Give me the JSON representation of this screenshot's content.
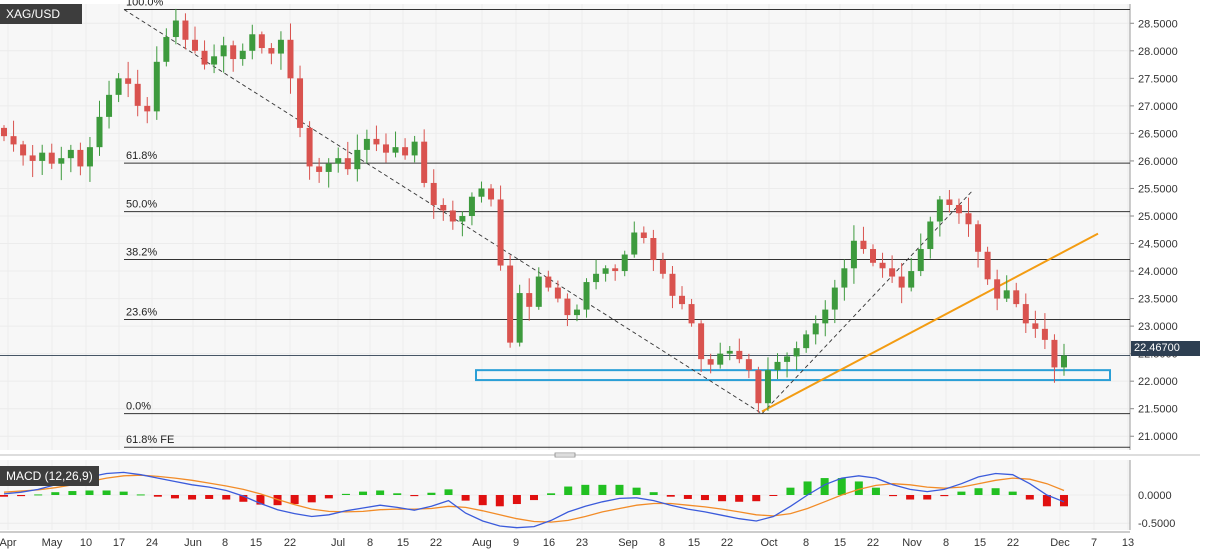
{
  "symbol": "XAG/USD",
  "last_price_label": "22.46700",
  "macd_label": "MACD (12,26,9)",
  "colors": {
    "bull": "#3d9a3d",
    "bear": "#d9534f",
    "trendline": "#f39c12",
    "support_box": "#2a9fd6",
    "macd_line": "#3b5bdb",
    "signal_line": "#f28c28",
    "hist_pos": "#22c022",
    "hist_neg": "#e01010"
  },
  "chart_data": [
    {
      "type": "candlestick",
      "title": "XAG/USD",
      "x_tick_labels": [
        "Apr",
        "May",
        "10",
        "17",
        "24",
        "Jun",
        "8",
        "15",
        "22",
        "Jul",
        "8",
        "15",
        "22",
        "Aug",
        "9",
        "16",
        "23",
        "Sep",
        "8",
        "15",
        "22",
        "Oct",
        "8",
        "15",
        "22",
        "Nov",
        "8",
        "15",
        "22",
        "Dec",
        "7",
        "13"
      ],
      "y_tick_labels": [
        "21.0000",
        "21.5000",
        "22.0000",
        "22.5000",
        "23.0000",
        "23.5000",
        "24.0000",
        "24.5000",
        "25.0000",
        "25.5000",
        "26.0000",
        "26.5000",
        "27.0000",
        "27.5000",
        "28.0000",
        "28.5000"
      ],
      "ylim": [
        20.75,
        28.85
      ],
      "last_price": 22.467,
      "fibonacci_levels": [
        {
          "label": "100.0%",
          "price": 28.75
        },
        {
          "label": "61.8%",
          "price": 25.96
        },
        {
          "label": "50.0%",
          "price": 25.08
        },
        {
          "label": "38.2%",
          "price": 24.21
        },
        {
          "label": "23.6%",
          "price": 23.12
        },
        {
          "label": "0.0%",
          "price": 21.41
        },
        {
          "label": "61.8% FE",
          "price": 20.8
        }
      ],
      "support_zone": [
        22.02,
        22.2
      ],
      "candles_close": [
        26.45,
        26.3,
        26.1,
        26.0,
        26.15,
        25.95,
        26.05,
        26.2,
        25.9,
        26.25,
        26.8,
        27.2,
        27.5,
        27.4,
        27.0,
        26.9,
        27.8,
        28.25,
        28.55,
        28.2,
        28.0,
        27.75,
        27.9,
        28.1,
        27.85,
        28.0,
        28.3,
        28.05,
        27.95,
        28.2,
        27.5,
        26.6,
        25.9,
        25.8,
        25.95,
        26.05,
        25.85,
        26.2,
        26.4,
        26.3,
        26.15,
        26.25,
        26.1,
        26.35,
        25.6,
        25.2,
        25.1,
        24.9,
        25.0,
        25.35,
        25.5,
        25.3,
        24.1,
        22.7,
        23.6,
        23.35,
        23.9,
        23.7,
        23.5,
        23.2,
        23.3,
        23.8,
        23.95,
        24.05,
        24.0,
        24.3,
        24.7,
        24.6,
        24.2,
        23.95,
        23.55,
        23.4,
        23.05,
        22.4,
        22.3,
        22.5,
        22.55,
        22.4,
        22.2,
        21.6,
        22.2,
        22.35,
        22.45,
        22.6,
        22.85,
        23.05,
        23.3,
        23.7,
        24.05,
        24.55,
        24.4,
        24.15,
        24.05,
        23.9,
        23.7,
        24.0,
        24.4,
        24.9,
        25.3,
        25.2,
        25.05,
        24.85,
        24.35,
        23.85,
        23.5,
        23.65,
        23.4,
        23.05,
        22.95,
        22.75,
        22.25,
        22.467
      ],
      "macd": {
        "y_tick_labels": [
          "0.0000",
          "-0.5000"
        ],
        "ylim": [
          -0.62,
          0.62
        ],
        "macd_line": [
          0.02,
          0.05,
          0.1,
          0.18,
          0.25,
          0.32,
          0.38,
          0.4,
          0.36,
          0.3,
          0.24,
          0.18,
          0.14,
          0.08,
          -0.02,
          -0.15,
          -0.26,
          -0.33,
          -0.38,
          -0.35,
          -0.28,
          -0.23,
          -0.18,
          -0.22,
          -0.27,
          -0.2,
          -0.1,
          -0.32,
          -0.46,
          -0.55,
          -0.58,
          -0.56,
          -0.45,
          -0.3,
          -0.2,
          -0.12,
          -0.06,
          -0.05,
          -0.1,
          -0.18,
          -0.25,
          -0.3,
          -0.36,
          -0.42,
          -0.46,
          -0.38,
          -0.2,
          0.0,
          0.18,
          0.3,
          0.34,
          0.3,
          0.18,
          0.1,
          0.06,
          0.1,
          0.2,
          0.32,
          0.38,
          0.36,
          0.2,
          0.0,
          -0.12
        ],
        "signal_line": [
          0.05,
          0.07,
          0.09,
          0.13,
          0.18,
          0.24,
          0.3,
          0.34,
          0.35,
          0.33,
          0.3,
          0.26,
          0.21,
          0.16,
          0.1,
          0.02,
          -0.08,
          -0.17,
          -0.25,
          -0.29,
          -0.3,
          -0.29,
          -0.26,
          -0.25,
          -0.25,
          -0.24,
          -0.2,
          -0.22,
          -0.28,
          -0.35,
          -0.42,
          -0.47,
          -0.48,
          -0.45,
          -0.38,
          -0.3,
          -0.24,
          -0.18,
          -0.15,
          -0.15,
          -0.18,
          -0.21,
          -0.25,
          -0.3,
          -0.35,
          -0.37,
          -0.33,
          -0.24,
          -0.12,
          0.0,
          0.1,
          0.17,
          0.2,
          0.18,
          0.14,
          0.12,
          0.14,
          0.2,
          0.26,
          0.3,
          0.28,
          0.2,
          0.08
        ]
      }
    }
  ]
}
